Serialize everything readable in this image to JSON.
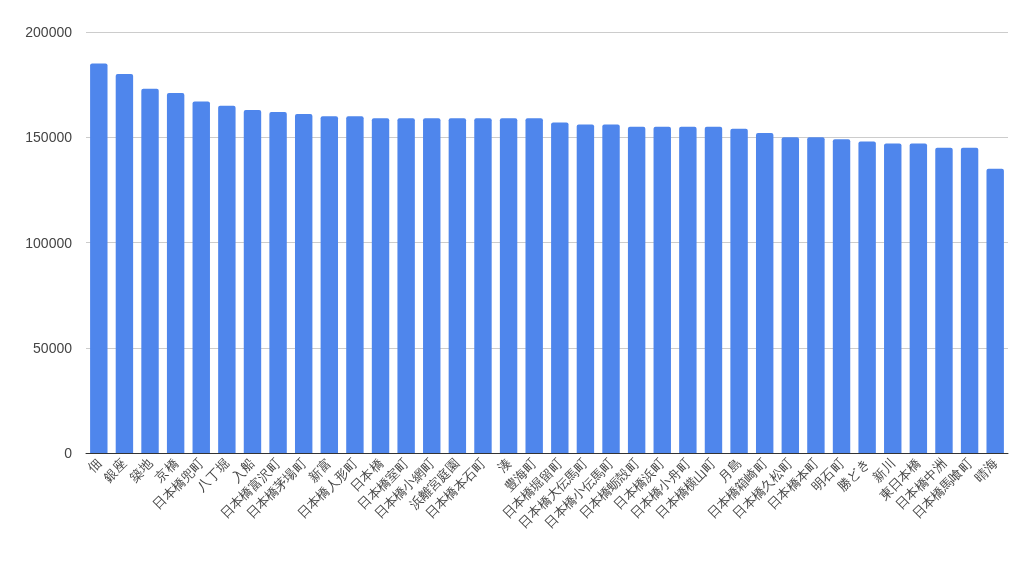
{
  "chart_data": {
    "type": "bar",
    "categories": [
      "佃",
      "銀座",
      "築地",
      "京橋",
      "日本橋兜町",
      "八丁堀",
      "入船",
      "日本橋富沢町",
      "日本橋茅場町",
      "新富",
      "日本橋人形町",
      "日本橋",
      "日本橋室町",
      "日本橋小網町",
      "浜離宮庭園",
      "日本橋本石町",
      "湊",
      "豊海町",
      "日本橋堀留町",
      "日本橋大伝馬町",
      "日本橋小伝馬町",
      "日本橋蛎殻町",
      "日本橋浜町",
      "日本橋小舟町",
      "日本橋横山町",
      "月島",
      "日本橋箱崎町",
      "日本橋久松町",
      "日本橋本町",
      "明石町",
      "勝どき",
      "新川",
      "東日本橋",
      "日本橋中洲",
      "日本橋馬喰町",
      "晴海"
    ],
    "values": [
      185000,
      180000,
      173000,
      171000,
      167000,
      165000,
      163000,
      162000,
      161000,
      160000,
      160000,
      159000,
      159000,
      159000,
      159000,
      159000,
      159000,
      159000,
      157000,
      156000,
      156000,
      155000,
      155000,
      155000,
      155000,
      154000,
      152000,
      150000,
      150000,
      149000,
      148000,
      147000,
      147000,
      145000,
      145000,
      135000
    ],
    "color": "#4f86ec",
    "ylim": [
      0,
      200000
    ],
    "yticks": [
      0,
      50000,
      100000,
      150000,
      200000
    ],
    "grid": "y"
  }
}
